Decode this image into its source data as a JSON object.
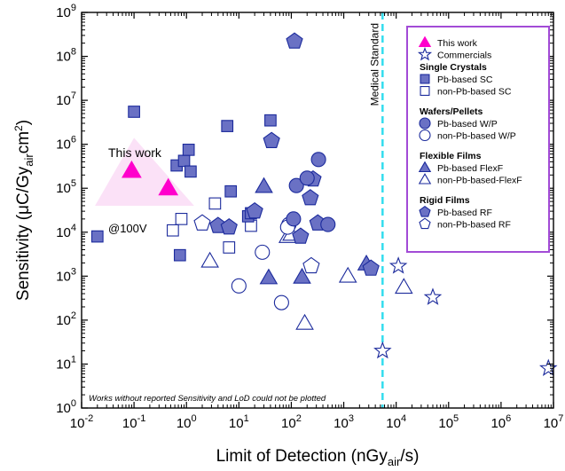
{
  "chart_data": {
    "type": "scatter",
    "xlabel_main": "Limit of Detection (nGy",
    "xlabel_sub": "air",
    "xlabel_end": "/s)",
    "ylabel_main": "Sensitivity (μC/Gy",
    "ylabel_sub": "air",
    "ylabel_end": "cm",
    "ylabel_sup": "2",
    "ylabel_close": ")",
    "x_scale": "log",
    "y_scale": "log",
    "xlim": [
      0.01,
      10000000
    ],
    "ylim": [
      1,
      1000000000
    ],
    "x_ticks": [
      {
        "base": "10",
        "exp": "-2",
        "value": 0.01
      },
      {
        "base": "10",
        "exp": "-1",
        "value": 0.1
      },
      {
        "base": "10",
        "exp": "0",
        "value": 1
      },
      {
        "base": "10",
        "exp": "1",
        "value": 10
      },
      {
        "base": "10",
        "exp": "2",
        "value": 100
      },
      {
        "base": "10",
        "exp": "3",
        "value": 1000
      },
      {
        "base": "10",
        "exp": "4",
        "value": 10000
      },
      {
        "base": "10",
        "exp": "5",
        "value": 100000
      },
      {
        "base": "10",
        "exp": "6",
        "value": 1000000
      },
      {
        "base": "10",
        "exp": "7",
        "value": 10000000
      }
    ],
    "y_ticks": [
      {
        "base": "10",
        "exp": "0",
        "value": 1
      },
      {
        "base": "10",
        "exp": "1",
        "value": 10
      },
      {
        "base": "10",
        "exp": "2",
        "value": 100
      },
      {
        "base": "10",
        "exp": "3",
        "value": 1000
      },
      {
        "base": "10",
        "exp": "4",
        "value": 10000
      },
      {
        "base": "10",
        "exp": "5",
        "value": 100000
      },
      {
        "base": "10",
        "exp": "6",
        "value": 1000000
      },
      {
        "base": "10",
        "exp": "7",
        "value": 10000000
      },
      {
        "base": "10",
        "exp": "8",
        "value": 100000000
      },
      {
        "base": "10",
        "exp": "9",
        "value": 1000000000
      }
    ],
    "medical_standard": {
      "label": "Medical Standard",
      "x": 5500,
      "color": "#33ddee"
    },
    "annotations": {
      "this_work": "This work",
      "at_100v": "@100V",
      "footnote": "Works without reported Sensitivity and LoD could not be plotted"
    },
    "colors": {
      "magenta": "#ff00cc",
      "fill_blue": "#6a71c4",
      "edge_blue": "#1b2a9c",
      "legend_border": "#a24bd6"
    },
    "series": [
      {
        "key": "this_work",
        "points": [
          [
            0.09,
            250000
          ],
          [
            0.45,
            100000
          ]
        ]
      },
      {
        "key": "commercials",
        "points": [
          [
            5500,
            20
          ],
          [
            11000,
            1700
          ],
          [
            50000,
            330
          ],
          [
            8000000,
            8
          ]
        ]
      },
      {
        "key": "pb_sc",
        "points": [
          [
            0.02,
            8000
          ],
          [
            0.1,
            5500000
          ],
          [
            0.65,
            330000
          ],
          [
            0.9,
            420000
          ],
          [
            1.1,
            750000
          ],
          [
            1.2,
            240000
          ],
          [
            0.75,
            3000
          ],
          [
            6,
            2600000
          ],
          [
            7,
            85000
          ],
          [
            15,
            23000
          ],
          [
            40,
            3500000
          ],
          [
            17,
            27000
          ]
        ]
      },
      {
        "key": "non_pb_sc",
        "points": [
          [
            0.55,
            11000
          ],
          [
            0.8,
            20000
          ],
          [
            3.5,
            45000
          ],
          [
            6.5,
            4500
          ],
          [
            17,
            14000
          ]
        ]
      },
      {
        "key": "pb_wp",
        "points": [
          [
            110,
            20000
          ],
          [
            125,
            115000
          ],
          [
            200,
            170000
          ],
          [
            330,
            450000
          ],
          [
            500,
            15000
          ]
        ]
      },
      {
        "key": "non_pb_wp",
        "points": [
          [
            10,
            600
          ],
          [
            28,
            3500
          ],
          [
            65,
            250
          ],
          [
            90,
            15000
          ],
          [
            85,
            13000
          ]
        ]
      },
      {
        "key": "pb_flexf",
        "points": [
          [
            30,
            110000
          ],
          [
            37,
            920
          ],
          [
            160,
            950
          ],
          [
            2700,
            1900
          ]
        ]
      },
      {
        "key": "non_pb_flexf",
        "points": [
          [
            2.8,
            2200
          ],
          [
            85,
            8000
          ],
          [
            100,
            9000
          ],
          [
            180,
            85
          ],
          [
            1200,
            1000
          ],
          [
            14000,
            560
          ]
        ]
      },
      {
        "key": "pb_rf",
        "points": [
          [
            4,
            14000
          ],
          [
            6.5,
            13000
          ],
          [
            20,
            30000
          ],
          [
            42,
            1200000
          ],
          [
            115,
            220000000
          ],
          [
            150,
            8000
          ],
          [
            230,
            60000
          ],
          [
            260,
            160000
          ],
          [
            320,
            16000
          ],
          [
            3300,
            1500
          ]
        ]
      },
      {
        "key": "non_pb_rf",
        "points": [
          [
            2,
            16000
          ],
          [
            240,
            1700
          ]
        ]
      }
    ],
    "legend": {
      "placement": "top-right",
      "items": [
        {
          "kind": "item",
          "label": "This work",
          "marker": "triangle",
          "style": "magenta"
        },
        {
          "kind": "item",
          "label": "Commercials",
          "marker": "star",
          "style": "open"
        },
        {
          "kind": "head",
          "label": "Single Crystals"
        },
        {
          "kind": "item",
          "label": "Pb-based SC",
          "marker": "square",
          "style": "filled"
        },
        {
          "kind": "item",
          "label": "non-Pb-based SC",
          "marker": "square",
          "style": "open"
        },
        {
          "kind": "gap"
        },
        {
          "kind": "head",
          "label": "Wafers/Pellets"
        },
        {
          "kind": "item",
          "label": "Pb-based W/P",
          "marker": "circle",
          "style": "filled"
        },
        {
          "kind": "item",
          "label": "non-Pb-based W/P",
          "marker": "circle",
          "style": "open"
        },
        {
          "kind": "gap"
        },
        {
          "kind": "head",
          "label": "Flexible Films"
        },
        {
          "kind": "item",
          "label": "Pb-based FlexF",
          "marker": "triangle",
          "style": "filled"
        },
        {
          "kind": "item",
          "label": "non-Pb-based-FlexF",
          "marker": "triangle",
          "style": "open"
        },
        {
          "kind": "gap"
        },
        {
          "kind": "head",
          "label": "Rigid Films"
        },
        {
          "kind": "item",
          "label": "Pb-based RF",
          "marker": "pentagon",
          "style": "filled"
        },
        {
          "kind": "item",
          "label": "non-Pb-based RF",
          "marker": "pentagon",
          "style": "open"
        }
      ]
    }
  }
}
